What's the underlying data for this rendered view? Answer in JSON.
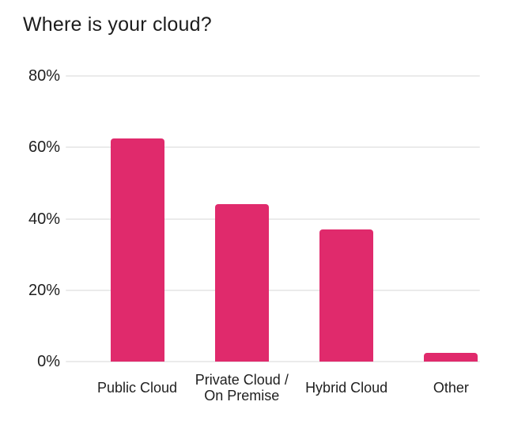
{
  "chart_data": {
    "type": "bar",
    "title": "Where is your cloud?",
    "categories": [
      "Public Cloud",
      "Private Cloud /\nOn Premise",
      "Hybrid Cloud",
      "Other"
    ],
    "values": [
      62.5,
      44,
      37,
      2.5
    ],
    "unit": "%",
    "xlabel": "",
    "ylabel": "",
    "ylim": [
      0,
      80
    ],
    "yticks": [
      0,
      20,
      40,
      60,
      80
    ],
    "ytick_labels": [
      "0%",
      "20%",
      "40%",
      "60%",
      "80%"
    ],
    "grid": true,
    "legend": "none",
    "bar_color": "#e02a6c",
    "gridline_color": "#ebebeb",
    "title_color": "#1c1c1c",
    "axis_text_color": "#1f1f1f",
    "background_color": "#ffffff"
  }
}
